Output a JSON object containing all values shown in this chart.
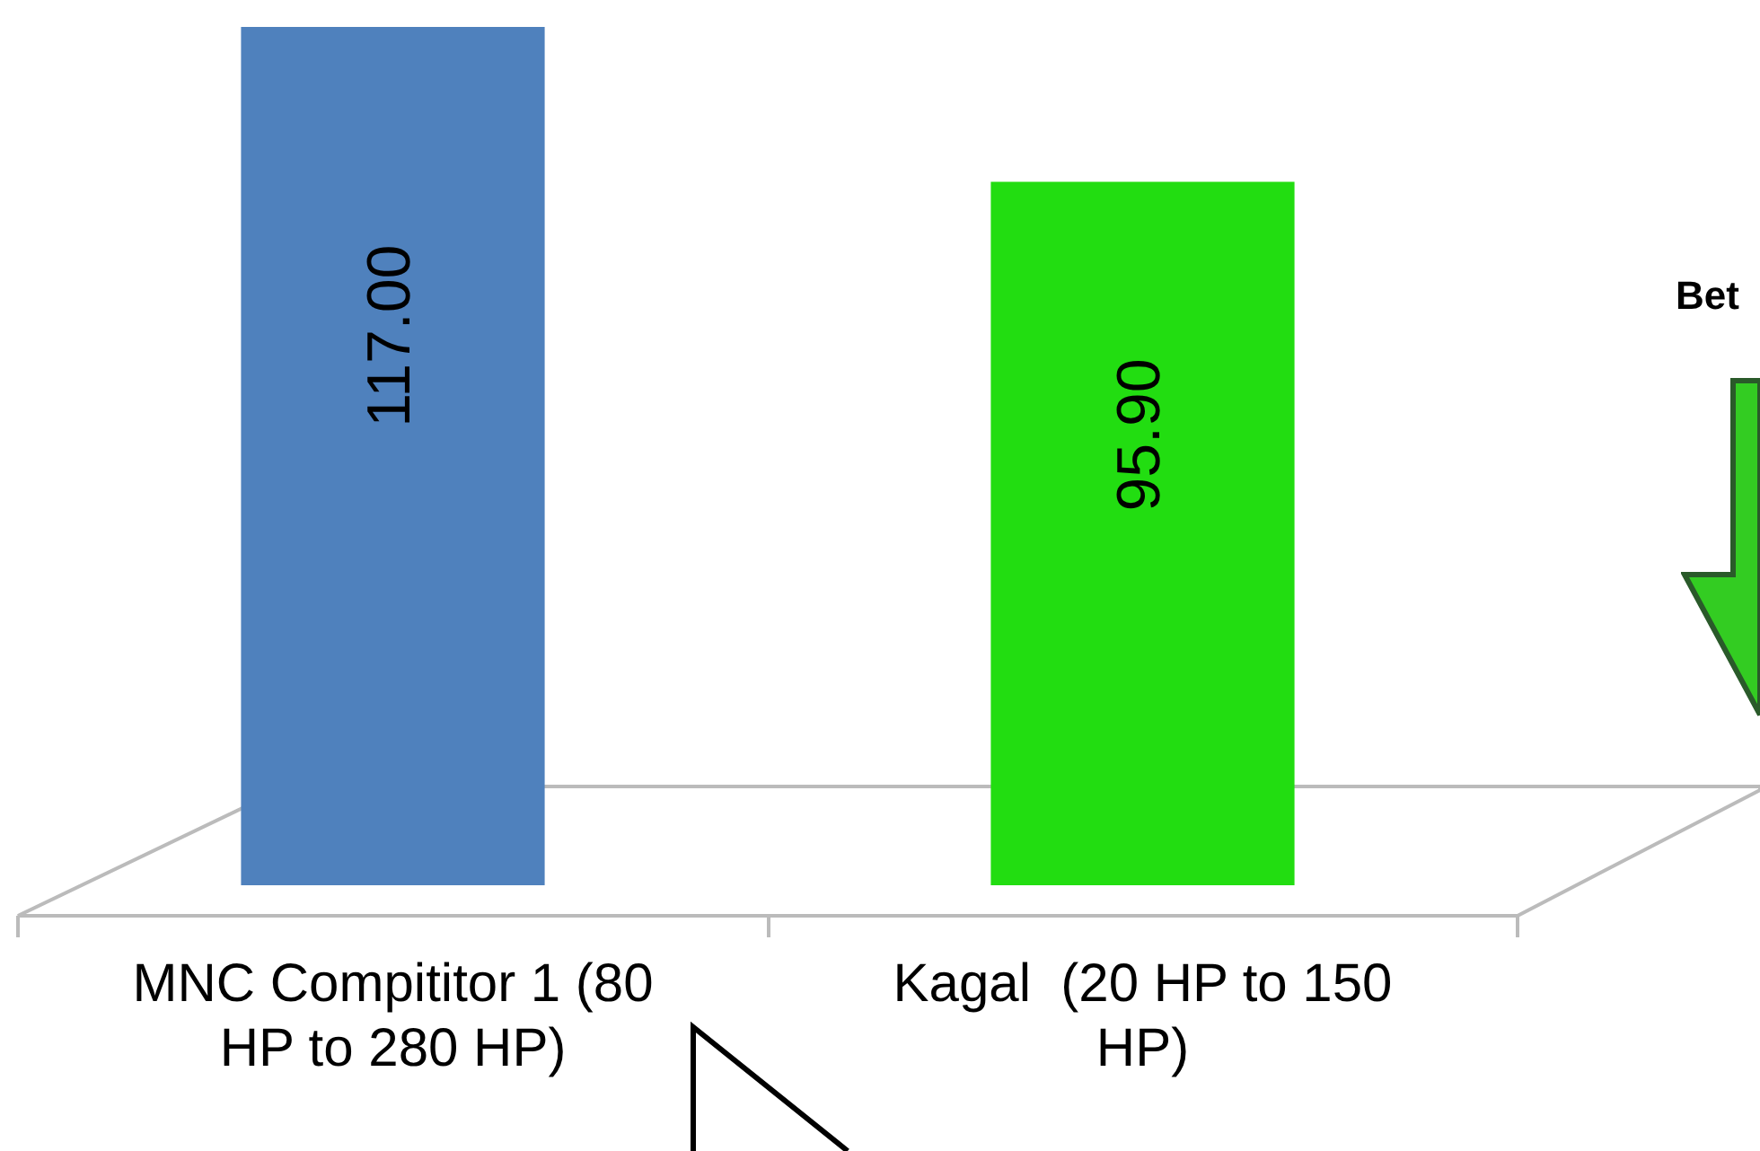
{
  "chart_data": {
    "type": "bar",
    "categories": [
      "MNC Compititor 1 (80 HP to 280 HP)",
      "Kagal  (20 HP to 150 HP)"
    ],
    "values": [
      117.0,
      95.9
    ],
    "colors": [
      "#4f81bd",
      "#22dd11"
    ],
    "value_labels": [
      "117.00",
      "95.90"
    ],
    "grid": false,
    "legend": false,
    "annotations": [
      "Bet"
    ]
  }
}
